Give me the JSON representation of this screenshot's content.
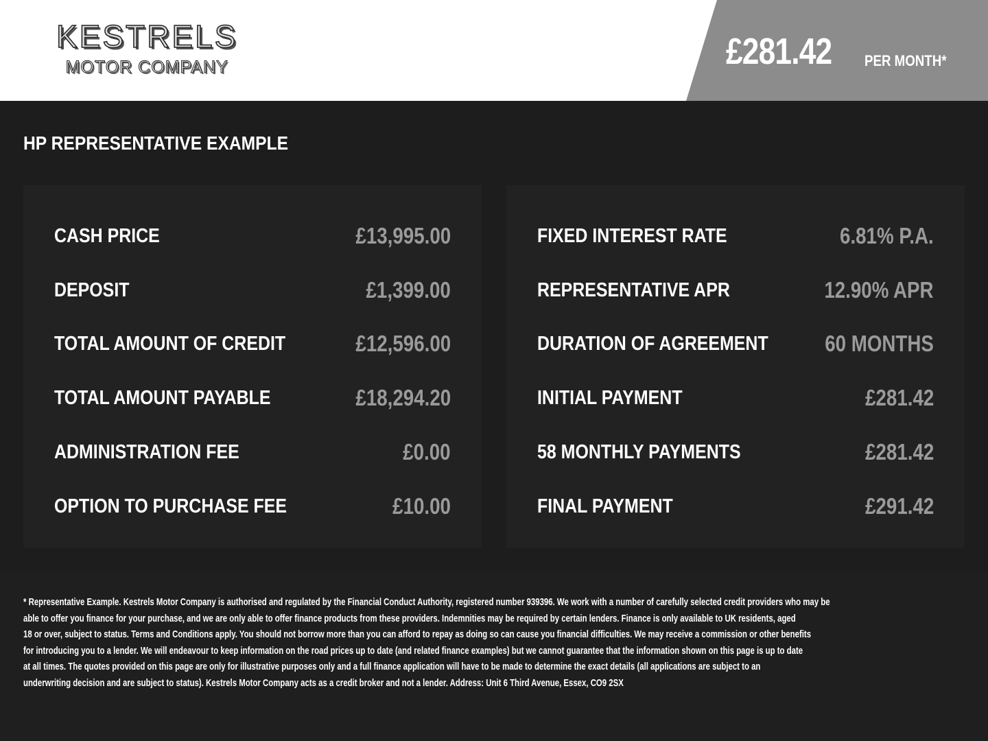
{
  "header": {
    "logo_main": "KESTRELS",
    "logo_sub": "MOTOR COMPANY",
    "price": "£281.42",
    "price_suffix": "PER MONTH*",
    "banner_color": "#8c8c8c"
  },
  "section_title": "HP REPRESENTATIVE EXAMPLE",
  "left_panel": [
    {
      "label": "CASH PRICE",
      "value": "£13,995.00"
    },
    {
      "label": "DEPOSIT",
      "value": "£1,399.00"
    },
    {
      "label": "TOTAL AMOUNT OF CREDIT",
      "value": "£12,596.00"
    },
    {
      "label": "TOTAL AMOUNT PAYABLE",
      "value": "£18,294.20"
    },
    {
      "label": "ADMINISTRATION FEE",
      "value": "£0.00"
    },
    {
      "label": "OPTION TO PURCHASE FEE",
      "value": "£10.00"
    }
  ],
  "right_panel": [
    {
      "label": "FIXED INTEREST RATE",
      "value": "6.81% P.A."
    },
    {
      "label": "REPRESENTATIVE APR",
      "value": "12.90% APR"
    },
    {
      "label": "DURATION OF AGREEMENT",
      "value": "60 MONTHS"
    },
    {
      "label": "INITIAL PAYMENT",
      "value": "£281.42"
    },
    {
      "label": "58 MONTHLY PAYMENTS",
      "value": "£281.42"
    },
    {
      "label": "FINAL PAYMENT",
      "value": "£291.42"
    }
  ],
  "footer_lines": [
    "* Representative Example. Kestrels Motor Company is authorised and regulated by the Financial Conduct Authority, registered number 939396. We work with a number of carefully selected credit providers who may be",
    "able to offer you finance for your purchase, and we are only able to offer finance products from these providers. Indemnities may be required by certain lenders. Finance is only available to UK residents, aged",
    "18 or over, subject to status. Terms and Conditions apply. You should not borrow more than you can afford to repay as doing so can cause you financial difficulties. We may receive a commission or other benefits",
    "for introducing you to a lender. We will endeavour to keep information on the road prices up to date (and related finance examples) but we cannot guarantee that the information shown on this page is up to date",
    "at all times. The quotes provided on this page are only for illustrative purposes only and a full finance application will have to be made to determine the exact details (all applications are subject to an",
    "underwriting decision and are subject to status). Kestrels Motor Company acts as a credit broker and not a lender. Address: Unit 6 Third Avenue, Essex, CO9 2SX"
  ]
}
